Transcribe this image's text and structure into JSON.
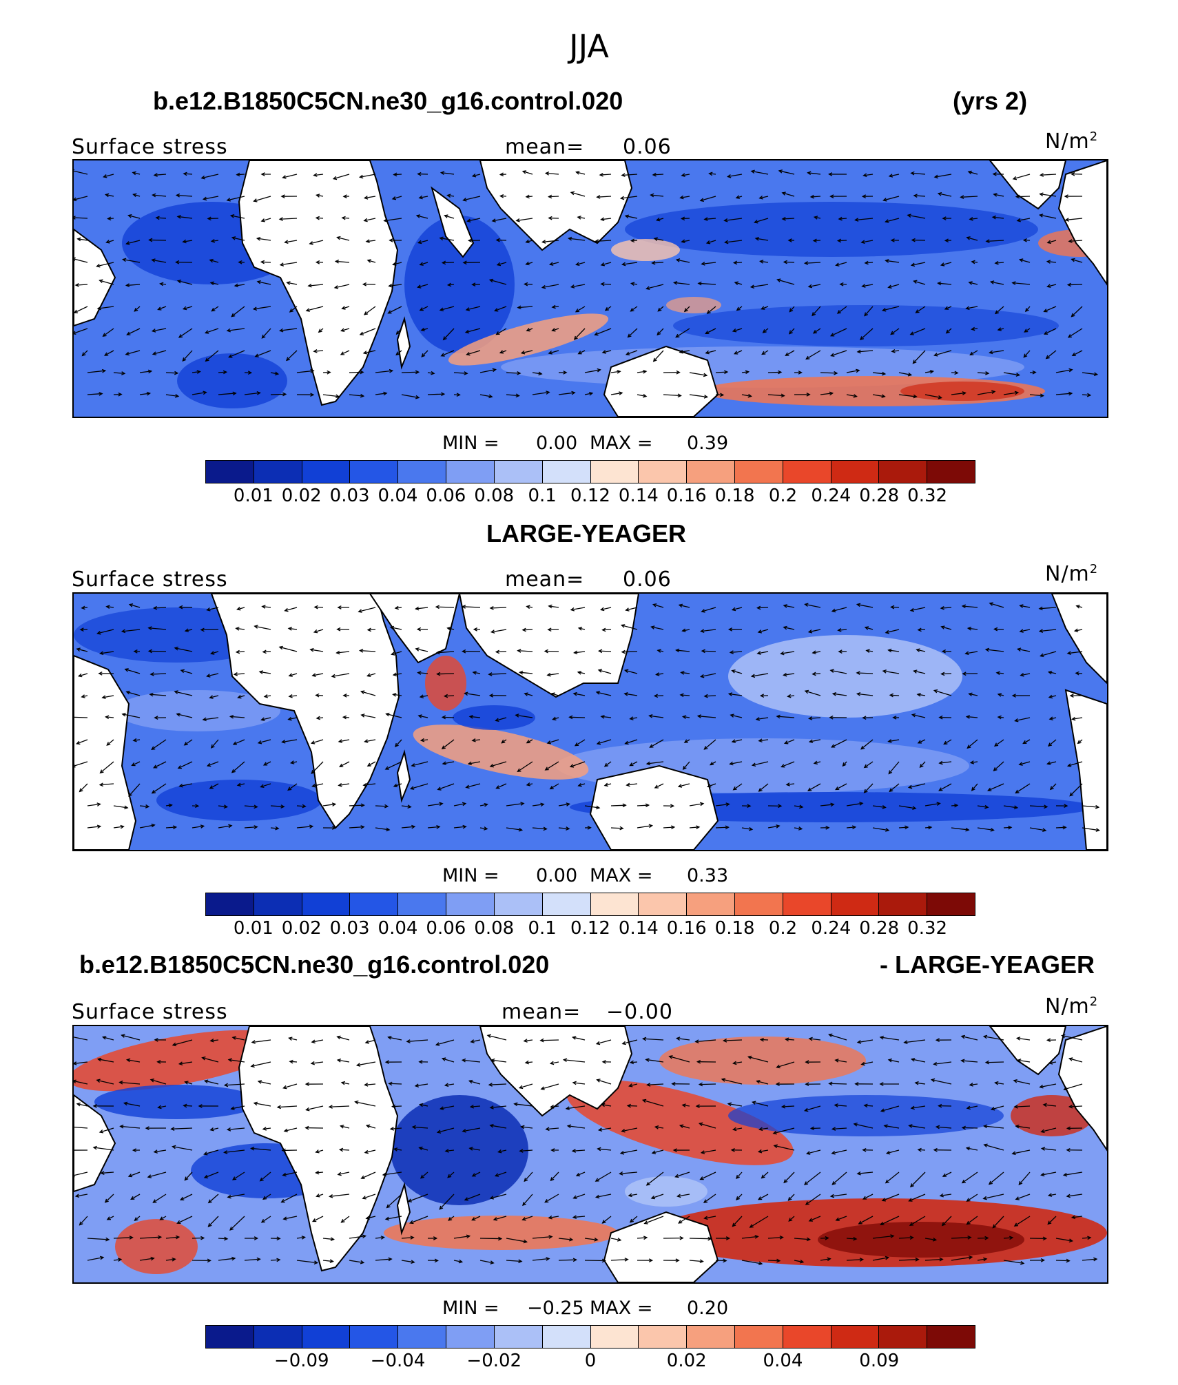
{
  "title": "JJA",
  "panel1": {
    "case_title": "b.e12.B1850C5CN.ne30_g16.control.020",
    "years": "(yrs 2)",
    "label": "Surface stress",
    "mean_label": "mean=",
    "mean_value": "0.06",
    "units": "N/m",
    "units_exp": "2",
    "min_label": "MIN =",
    "min_value": "0.00",
    "max_label": "MAX =",
    "max_value": "0.39"
  },
  "panel2": {
    "case_title": "LARGE-YEAGER",
    "label": "Surface stress",
    "mean_label": "mean=",
    "mean_value": "0.06",
    "units": "N/m",
    "units_exp": "2",
    "min_label": "MIN =",
    "min_value": "0.00",
    "max_label": "MAX =",
    "max_value": "0.33"
  },
  "panel3": {
    "case_title": "b.e12.B1850C5CN.ne30_g16.control.020",
    "diff_title": "- LARGE-YEAGER",
    "label": "Surface stress",
    "mean_label": "mean=",
    "mean_value": "−0.00",
    "units": "N/m",
    "units_exp": "2",
    "min_label": "MIN =",
    "min_value": "−0.25",
    "max_label": "MAX =",
    "max_value": "0.20"
  },
  "colorbar_abs": {
    "colors": [
      "#0a1a8c",
      "#0c2eb4",
      "#1140d6",
      "#2456e6",
      "#4a78ee",
      "#7f9ef4",
      "#abc0f7",
      "#d3e0fa",
      "#fde4d2",
      "#fbc6ac",
      "#f6a07e",
      "#f2754f",
      "#e9472a",
      "#cf2a14",
      "#aa1a0c",
      "#7d0a06"
    ],
    "labels": [
      "0.01",
      "0.02",
      "0.03",
      "0.04",
      "0.06",
      "0.08",
      "0.1",
      "0.12",
      "0.14",
      "0.16",
      "0.18",
      "0.2",
      "0.24",
      "0.28",
      "0.32"
    ]
  },
  "colorbar_diff": {
    "colors": [
      "#0a1a8c",
      "#0c2eb4",
      "#1140d6",
      "#2456e6",
      "#4a78ee",
      "#7f9ef4",
      "#abc0f7",
      "#d3e0fa",
      "#fde4d2",
      "#fbc6ac",
      "#f6a07e",
      "#f2754f",
      "#e9472a",
      "#cf2a14",
      "#aa1a0c",
      "#7d0a06"
    ],
    "labels": [
      "−0.09",
      "−0.04",
      "−0.02",
      "0",
      "0.02",
      "0.04",
      "0.09"
    ],
    "label_boundaries": [
      2,
      4,
      6,
      8,
      10,
      12,
      14
    ]
  }
}
